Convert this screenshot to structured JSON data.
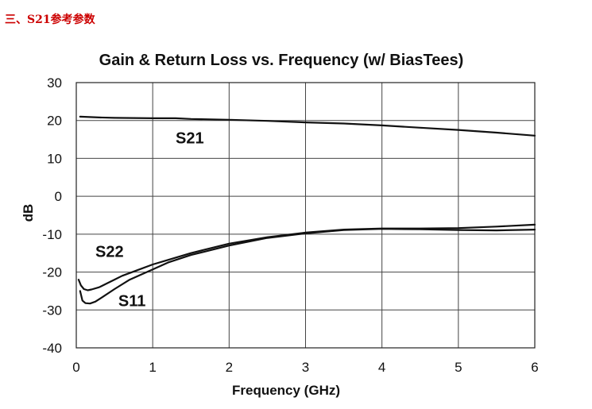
{
  "section_heading": "三、S21参考参数",
  "chart_data": {
    "type": "line",
    "title": "Gain & Return Loss vs. Frequency (w/ BiasTees)",
    "xlabel": "Frequency (GHz)",
    "ylabel": "dB",
    "xlim": [
      0,
      6
    ],
    "ylim": [
      -40,
      30
    ],
    "x_ticks": [
      "0",
      "1",
      "2",
      "3",
      "4",
      "5",
      "6"
    ],
    "y_ticks": [
      "30",
      "20",
      "10",
      "0",
      "-10",
      "-20",
      "-30",
      "-40"
    ],
    "grid": true,
    "series": [
      {
        "name": "S21",
        "x": [
          0.05,
          0.3,
          0.5,
          1.0,
          1.3,
          1.5,
          2.0,
          2.5,
          3.0,
          3.5,
          4.0,
          4.5,
          5.0,
          5.5,
          6.0
        ],
        "y": [
          21.0,
          20.8,
          20.7,
          20.6,
          20.6,
          20.4,
          20.2,
          19.9,
          19.5,
          19.2,
          18.7,
          18.1,
          17.5,
          16.8,
          16.0
        ]
      },
      {
        "name": "S22",
        "x": [
          0.03,
          0.06,
          0.1,
          0.15,
          0.2,
          0.3,
          0.4,
          0.5,
          0.6,
          0.8,
          1.0,
          1.2,
          1.5,
          2.0,
          2.5,
          3.0,
          3.5,
          4.0,
          4.5,
          5.0,
          5.5,
          6.0
        ],
        "y": [
          -22.0,
          -23.5,
          -24.5,
          -24.8,
          -24.6,
          -24.0,
          -23.0,
          -22.0,
          -21.0,
          -19.5,
          -18.0,
          -16.8,
          -15.0,
          -12.5,
          -10.8,
          -9.6,
          -8.8,
          -8.5,
          -8.5,
          -8.4,
          -8.0,
          -7.5
        ]
      },
      {
        "name": "S11",
        "x": [
          0.05,
          0.08,
          0.12,
          0.18,
          0.25,
          0.35,
          0.5,
          0.7,
          1.0,
          1.2,
          1.5,
          2.0,
          2.5,
          3.0,
          3.5,
          4.0,
          4.5,
          5.0,
          5.5,
          6.0
        ],
        "y": [
          -25.0,
          -27.5,
          -28.2,
          -28.3,
          -27.8,
          -26.5,
          -24.5,
          -22.0,
          -19.3,
          -17.5,
          -15.5,
          -13.0,
          -11.0,
          -9.8,
          -8.9,
          -8.6,
          -8.7,
          -8.9,
          -9.0,
          -8.8
        ]
      }
    ],
    "annotations": [
      {
        "text": "S21",
        "x": 1.3,
        "y": 14
      },
      {
        "text": "S22",
        "x": 0.25,
        "y": -16
      },
      {
        "text": "S11",
        "x": 0.55,
        "y": -29
      }
    ],
    "colors": {
      "line": "#111111",
      "grid": "#444444",
      "background": "#ffffff"
    }
  }
}
